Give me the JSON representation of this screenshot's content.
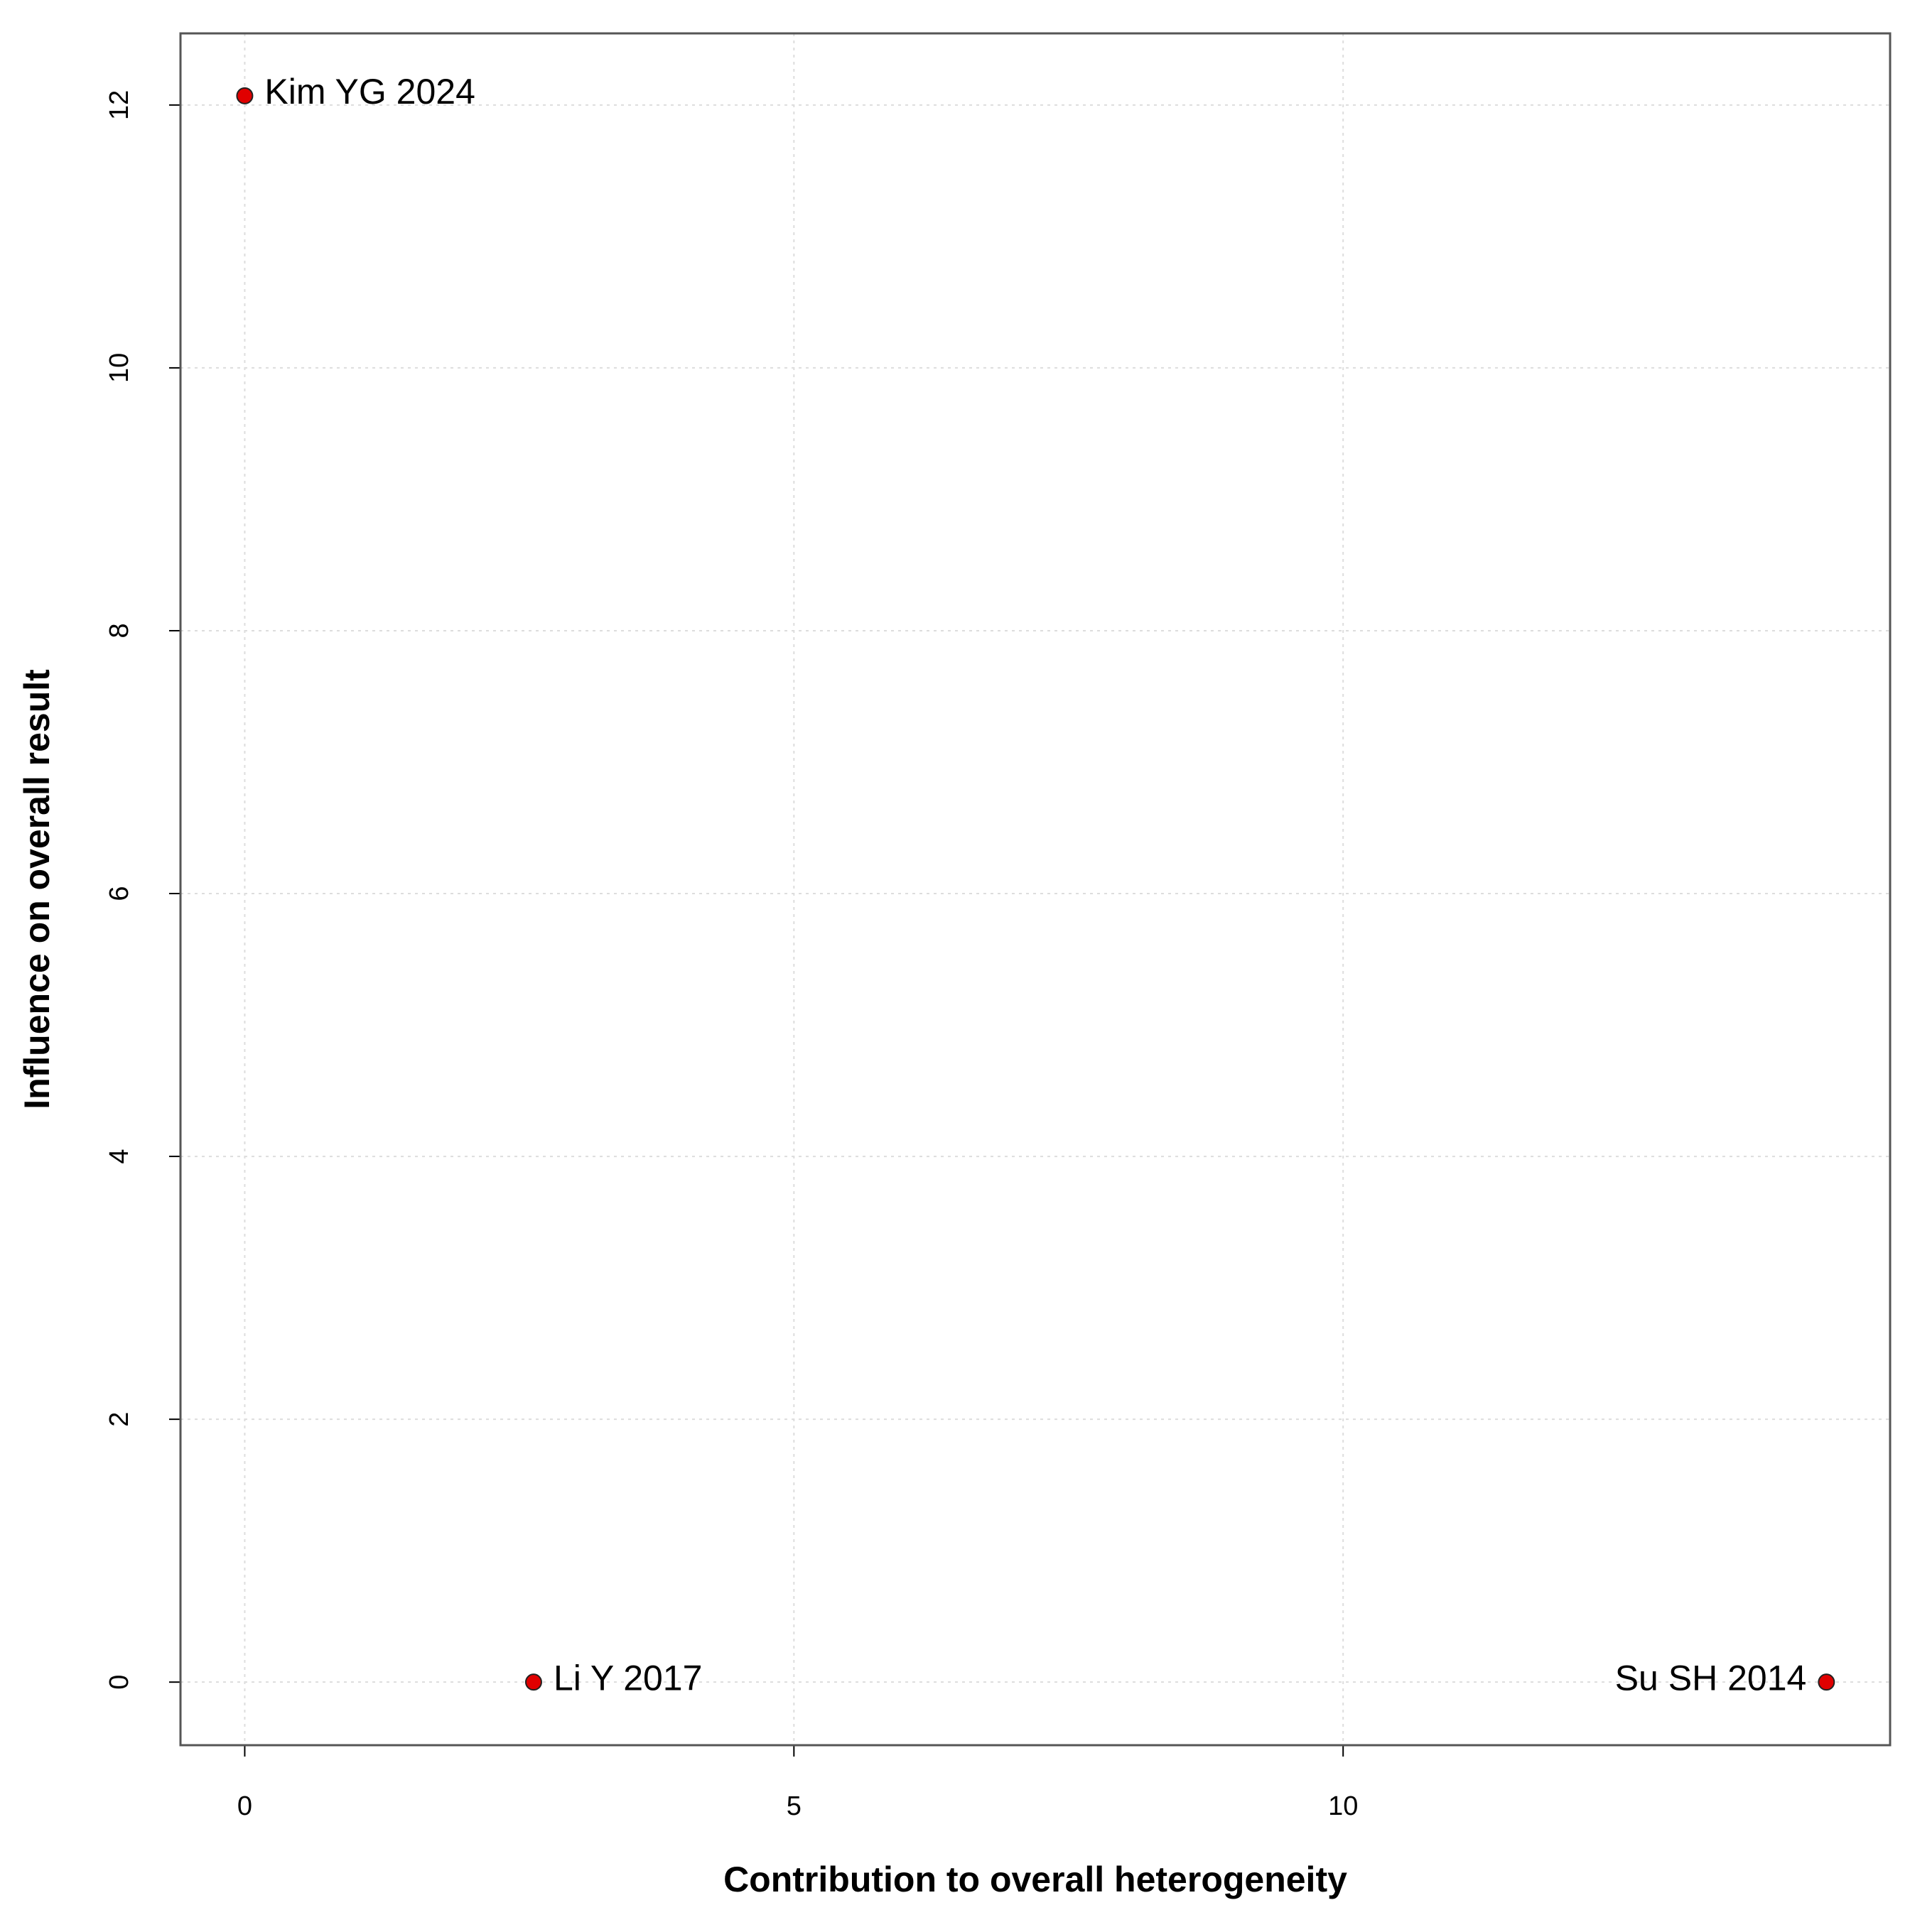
{
  "chart_data": {
    "type": "scatter",
    "x_label": "Contribution to overall heterogeneity",
    "y_label": "Influence on overall result",
    "labels": [
      "Kim YG 2024",
      "Li Y 2017",
      "Su SH 2014"
    ],
    "x": [
      0,
      2.63,
      14.4
    ],
    "values": [
      12.07,
      0,
      0
    ],
    "color": "#e00000",
    "xlim": [
      -0.585,
      14.98
    ],
    "ylim": [
      -0.48,
      12.545
    ],
    "xticks": [
      0,
      5,
      10
    ],
    "yticks": [
      0,
      2,
      4,
      6,
      8,
      10,
      12
    ],
    "grid": true
  }
}
